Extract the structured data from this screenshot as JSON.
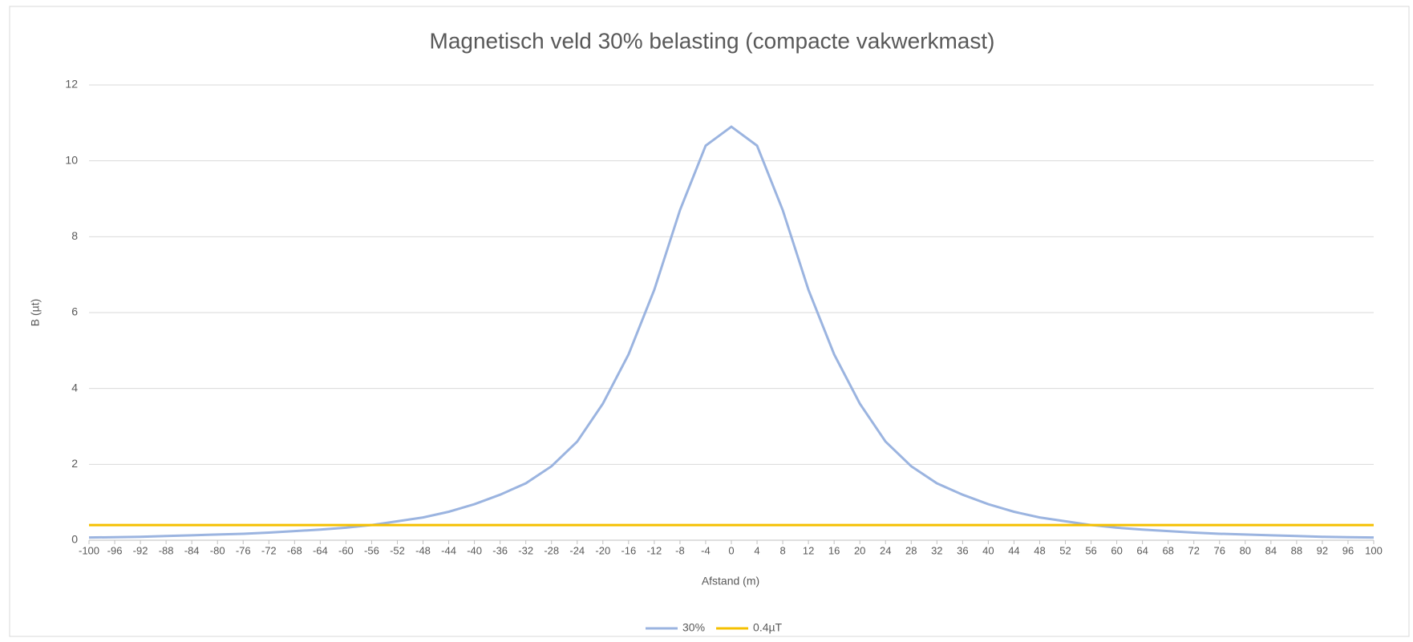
{
  "chart_data": {
    "type": "line",
    "title": "Magnetisch veld 30% belasting (compacte vakwerkmast)",
    "x_label": "Afstand (m)",
    "y_label": "B (µt)",
    "x": [
      -100,
      -96,
      -92,
      -88,
      -84,
      -80,
      -76,
      -72,
      -68,
      -64,
      -60,
      -56,
      -52,
      -48,
      -44,
      -40,
      -36,
      -32,
      -28,
      -24,
      -20,
      -16,
      -12,
      -8,
      -4,
      0,
      4,
      8,
      12,
      16,
      20,
      24,
      28,
      32,
      36,
      40,
      44,
      48,
      52,
      56,
      60,
      64,
      68,
      72,
      76,
      80,
      84,
      88,
      92,
      96,
      100
    ],
    "series": [
      {
        "name": "30%",
        "color": "#9bb4e0",
        "values": [
          0.07,
          0.08,
          0.09,
          0.11,
          0.13,
          0.15,
          0.17,
          0.2,
          0.24,
          0.28,
          0.33,
          0.4,
          0.5,
          0.6,
          0.75,
          0.95,
          1.2,
          1.5,
          1.95,
          2.6,
          3.6,
          4.9,
          6.6,
          8.7,
          10.4,
          10.9,
          10.4,
          8.7,
          6.6,
          4.9,
          3.6,
          2.6,
          1.95,
          1.5,
          1.2,
          0.95,
          0.75,
          0.6,
          0.5,
          0.4,
          0.33,
          0.28,
          0.24,
          0.2,
          0.17,
          0.15,
          0.13,
          0.11,
          0.09,
          0.08,
          0.07
        ]
      },
      {
        "name": "0.4µT",
        "color": "#f5c000",
        "values": [
          0.4,
          0.4,
          0.4,
          0.4,
          0.4,
          0.4,
          0.4,
          0.4,
          0.4,
          0.4,
          0.4,
          0.4,
          0.4,
          0.4,
          0.4,
          0.4,
          0.4,
          0.4,
          0.4,
          0.4,
          0.4,
          0.4,
          0.4,
          0.4,
          0.4,
          0.4,
          0.4,
          0.4,
          0.4,
          0.4,
          0.4,
          0.4,
          0.4,
          0.4,
          0.4,
          0.4,
          0.4,
          0.4,
          0.4,
          0.4,
          0.4,
          0.4,
          0.4,
          0.4,
          0.4,
          0.4,
          0.4,
          0.4,
          0.4,
          0.4,
          0.4
        ]
      }
    ],
    "xlim": [
      -100,
      100
    ],
    "xticks": [
      -100,
      -96,
      -92,
      -88,
      -84,
      -80,
      -76,
      -72,
      -68,
      -64,
      -60,
      -56,
      -52,
      -48,
      -44,
      -40,
      -36,
      -32,
      -28,
      -24,
      -20,
      -16,
      -12,
      -8,
      -4,
      0,
      4,
      8,
      12,
      16,
      20,
      24,
      28,
      32,
      36,
      40,
      44,
      48,
      52,
      56,
      60,
      64,
      68,
      72,
      76,
      80,
      84,
      88,
      92,
      96,
      100
    ],
    "ylim": [
      0,
      12
    ],
    "yticks": [
      0,
      2,
      4,
      6,
      8,
      10,
      12
    ],
    "grid": true,
    "legend": "bottom"
  }
}
